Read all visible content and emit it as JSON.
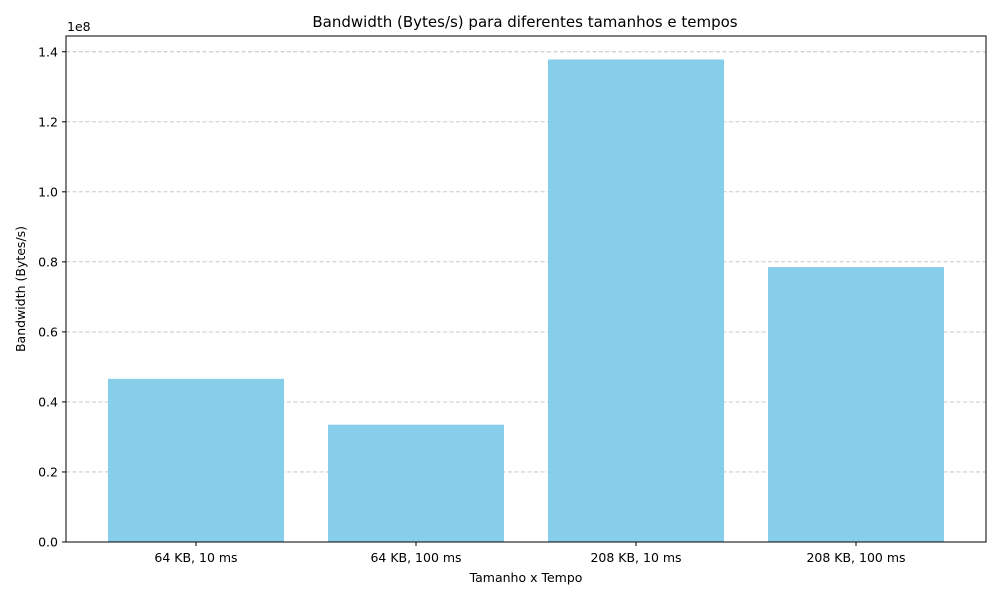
{
  "chart_data": {
    "type": "bar",
    "title": "Bandwidth (Bytes/s) para diferentes tamanhos e tempos",
    "xlabel": "Tamanho x Tempo",
    "ylabel": "Bandwidth (Bytes/s)",
    "scale_label": "1e8",
    "categories": [
      "64 KB, 10 ms",
      "64 KB, 100 ms",
      "208 KB, 10 ms",
      "208 KB, 100 ms"
    ],
    "values": [
      46600000,
      33500000,
      137800000,
      78500000
    ],
    "ylim": [
      0,
      144500000
    ],
    "yticks": [
      0,
      20000000,
      40000000,
      60000000,
      80000000,
      100000000,
      120000000,
      140000000
    ],
    "ytick_labels": [
      "0.0",
      "0.2",
      "0.4",
      "0.6",
      "0.8",
      "1.0",
      "1.2",
      "1.4"
    ],
    "grid": "y-dashed",
    "bar_color": "#87ceeb",
    "grid_color": "#c0c0c0"
  }
}
